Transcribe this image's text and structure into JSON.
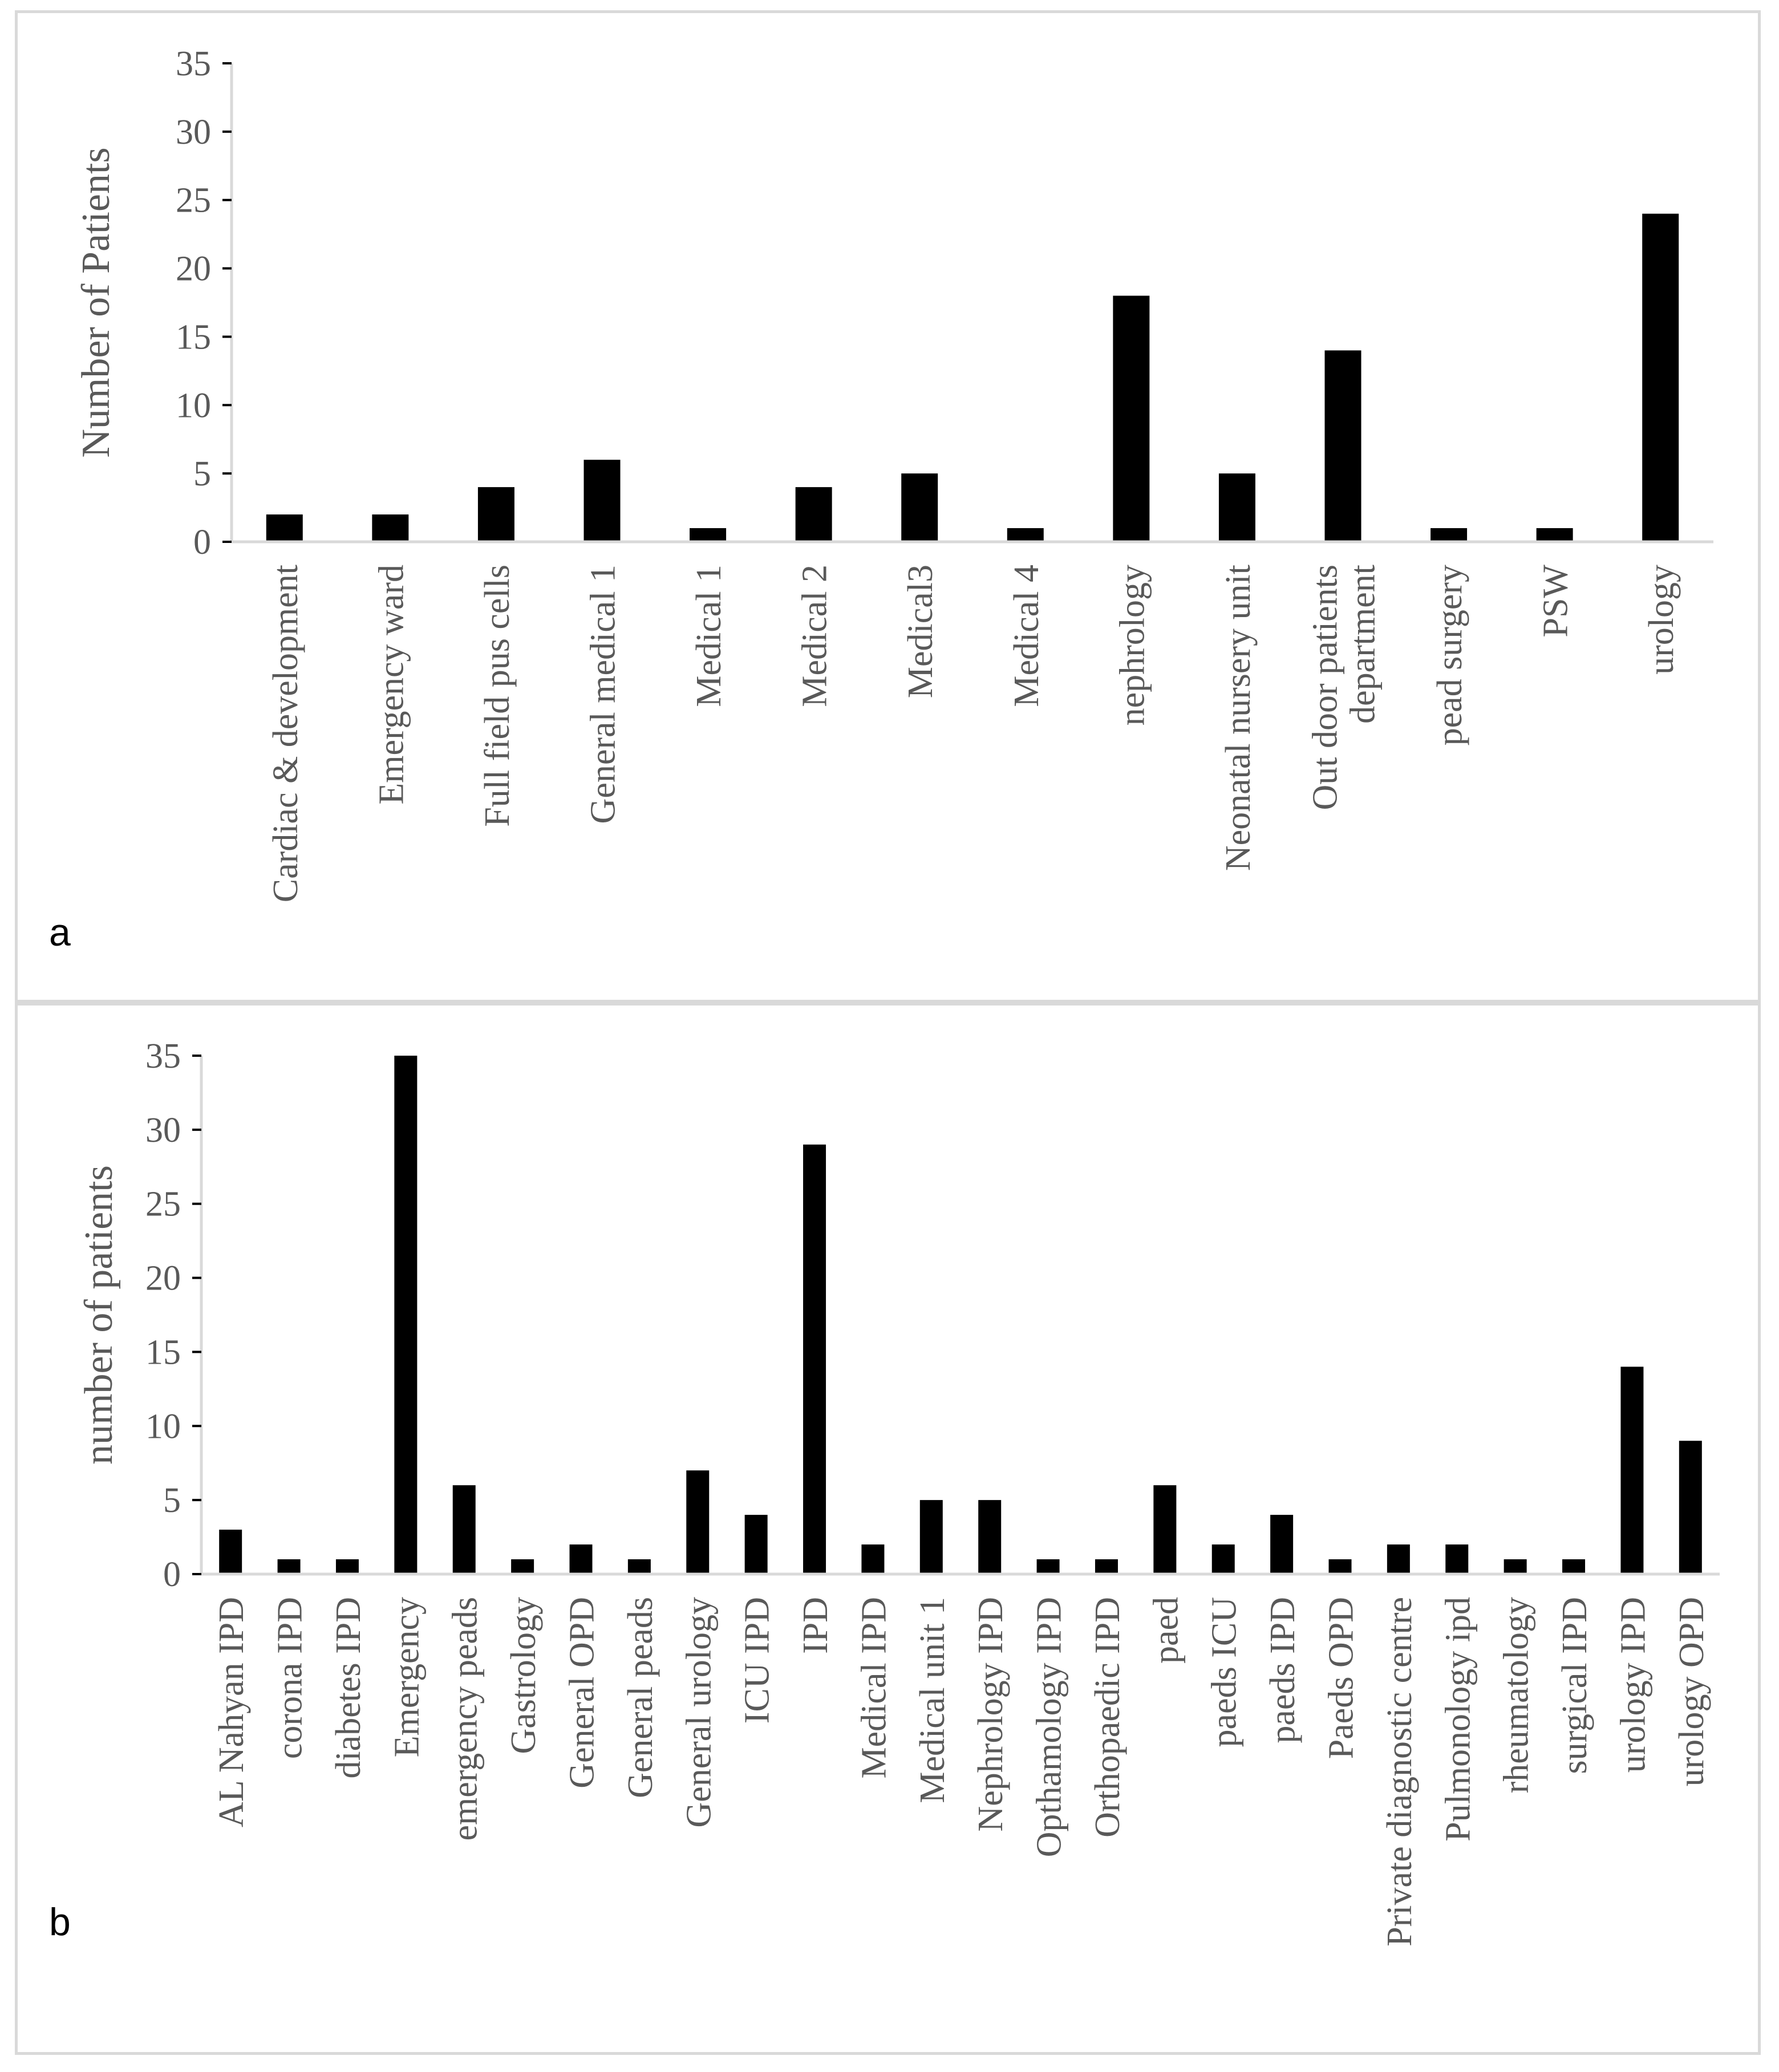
{
  "chart_data": [
    {
      "panel": "a",
      "type": "bar",
      "title": "",
      "xlabel": "",
      "ylabel": "Number of  Patients",
      "ylim": [
        0,
        35
      ],
      "yticks": [
        0,
        5,
        10,
        15,
        20,
        25,
        30,
        35
      ],
      "grid": false,
      "categories": [
        [
          "Cardiac & development"
        ],
        [
          "Emergency ward"
        ],
        [
          "Full field pus cells"
        ],
        [
          "General medical 1"
        ],
        [
          "Medical 1"
        ],
        [
          "Medical 2"
        ],
        [
          "Medical3"
        ],
        [
          "Medical 4"
        ],
        [
          "nephrology"
        ],
        [
          "Neonatal nursery unit"
        ],
        [
          "Out door patients",
          "department"
        ],
        [
          "pead surgery"
        ],
        [
          "PSW"
        ],
        [
          "urology"
        ]
      ],
      "values": [
        2,
        2,
        4,
        6,
        1,
        4,
        5,
        1,
        18,
        5,
        14,
        1,
        1,
        24
      ]
    },
    {
      "panel": "b",
      "type": "bar",
      "title": "",
      "xlabel": "",
      "ylabel": "number of patients",
      "ylim": [
        0,
        35
      ],
      "yticks": [
        0,
        5,
        10,
        15,
        20,
        25,
        30,
        35
      ],
      "grid": false,
      "categories": [
        [
          "AL Nahyan IPD"
        ],
        [
          "corona IPD"
        ],
        [
          "diabetes IPD"
        ],
        [
          "Emergency"
        ],
        [
          "emergency peads"
        ],
        [
          "Gastrology"
        ],
        [
          "General OPD"
        ],
        [
          "General peads"
        ],
        [
          "General urology"
        ],
        [
          "ICU IPD"
        ],
        [
          "IPD"
        ],
        [
          "Medical IPD"
        ],
        [
          "Medical unit 1"
        ],
        [
          "Nephrology IPD"
        ],
        [
          "Opthamology IPD"
        ],
        [
          "Orthopaedic IPD"
        ],
        [
          "paed"
        ],
        [
          "paeds ICU"
        ],
        [
          "paeds IPD"
        ],
        [
          "Paeds OPD"
        ],
        [
          "Private diagnostic centre"
        ],
        [
          "Pulmonology ipd"
        ],
        [
          "rheumatology"
        ],
        [
          "surgical IPD"
        ],
        [
          "urology IPD"
        ],
        [
          "urology OPD"
        ]
      ],
      "values": [
        3,
        1,
        1,
        35,
        6,
        1,
        2,
        1,
        7,
        4,
        29,
        2,
        5,
        5,
        1,
        1,
        6,
        2,
        4,
        1,
        2,
        2,
        1,
        1,
        14,
        9
      ]
    }
  ],
  "panels": {
    "a": {
      "letter": "a"
    },
    "b": {
      "letter": "b"
    }
  }
}
